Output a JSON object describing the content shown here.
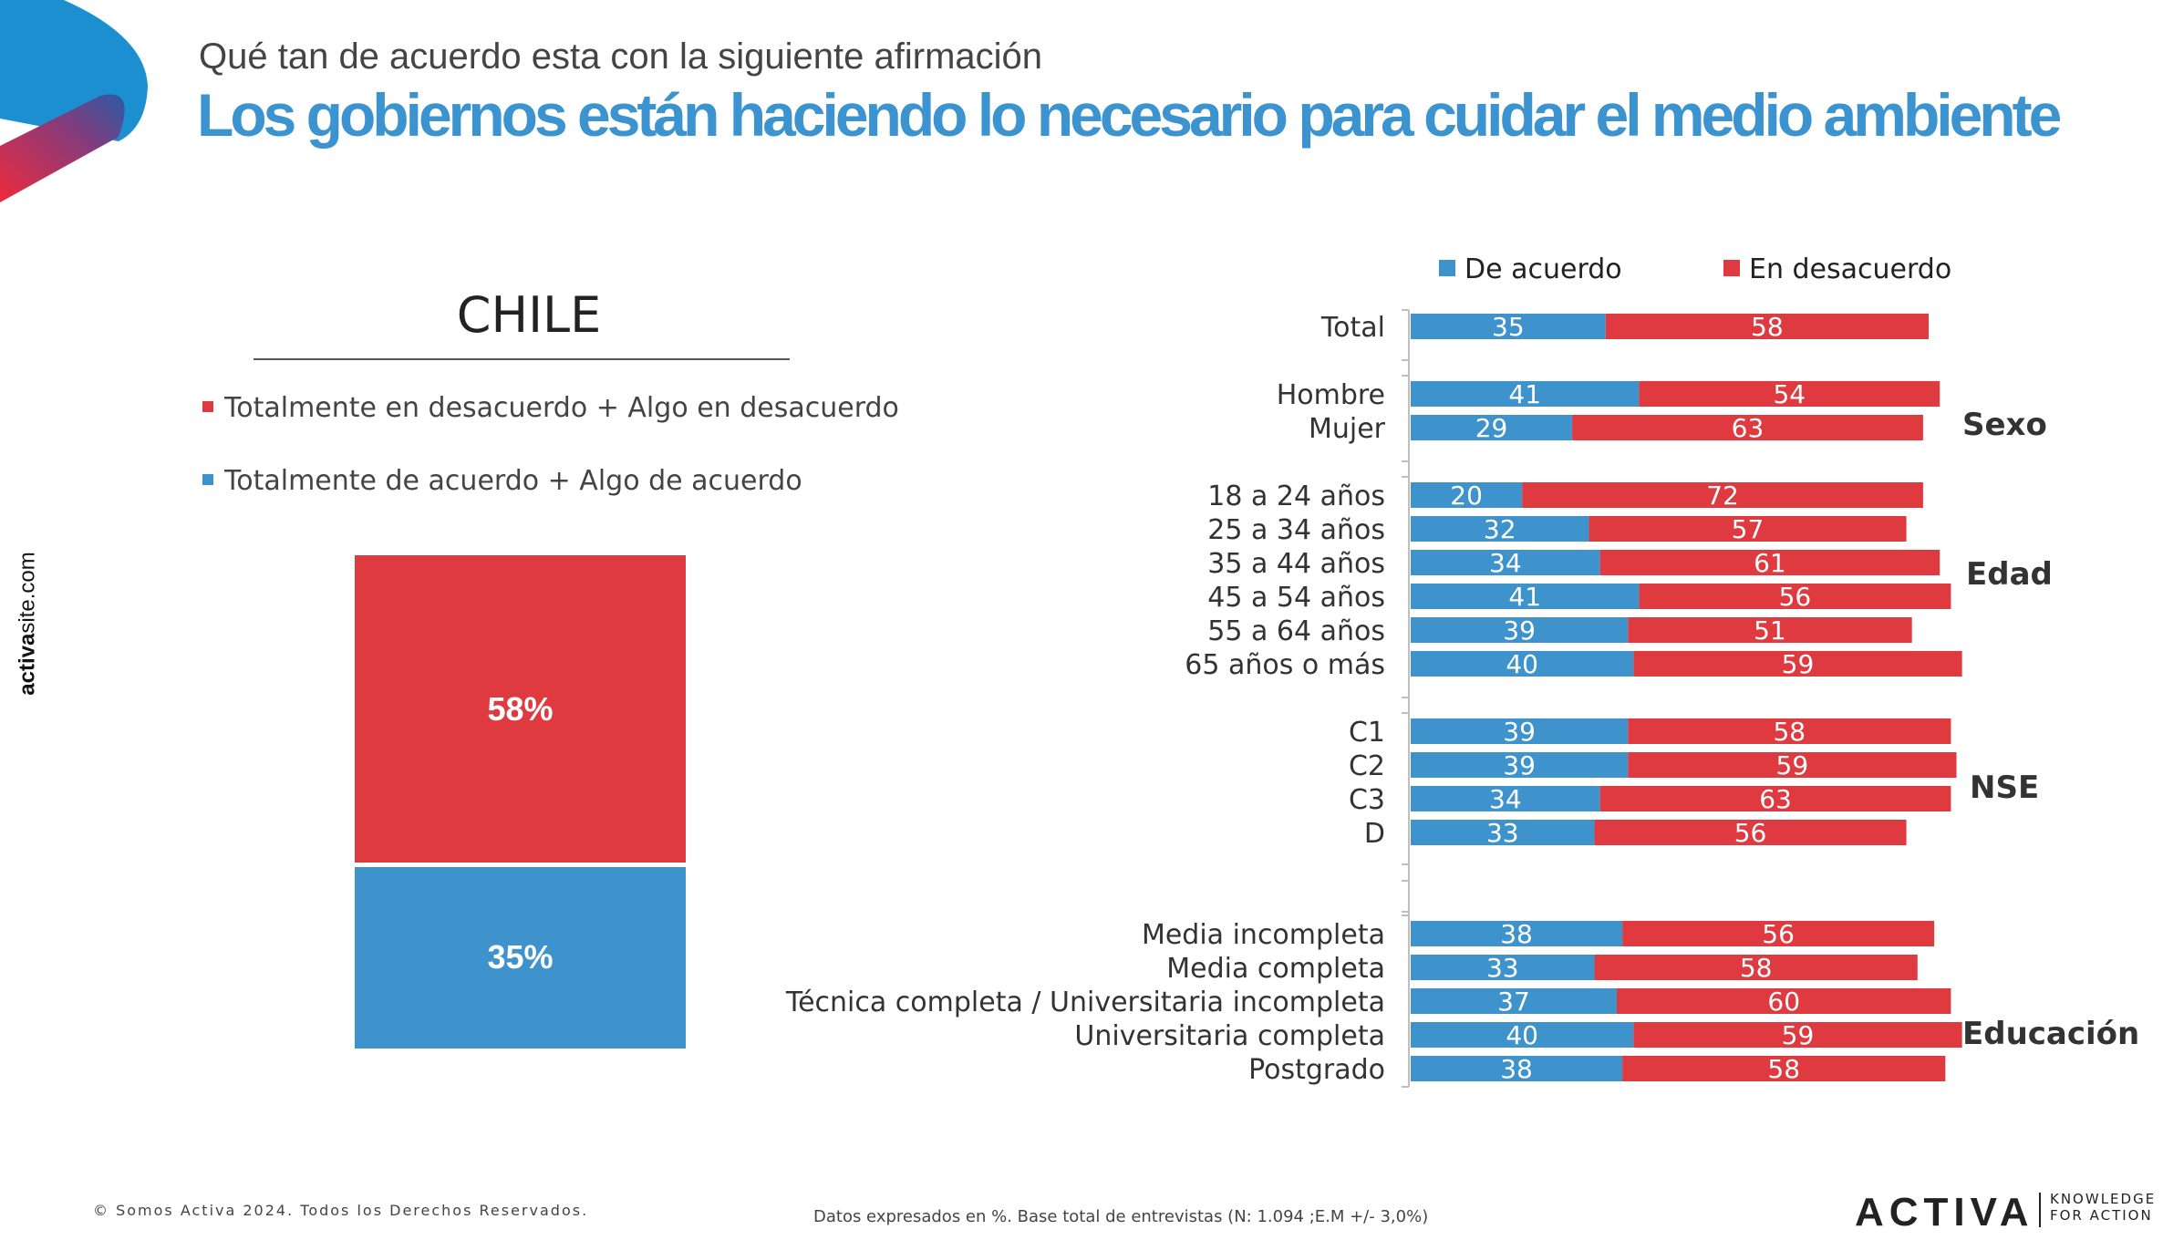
{
  "header": {
    "subtitle": "Qué tan de acuerdo esta con la siguiente afirmación",
    "title": "Los gobiernos están haciendo lo necesario para cuidar el medio ambiente"
  },
  "side_url": {
    "bold": "activa",
    "rest": "site.com"
  },
  "country": "CHILE",
  "left_legend": {
    "disagree": "Totalmente en desacuerdo + Algo en desacuerdo",
    "agree": "Totalmente de acuerdo + Algo de acuerdo"
  },
  "left_bar": {
    "disagree": "58%",
    "agree": "35%"
  },
  "top_legend": {
    "agree": "De acuerdo",
    "disagree": "En desacuerdo"
  },
  "colors": {
    "agree": "#3f93cc",
    "disagree": "#df3a3f",
    "title": "#3b93cf"
  },
  "chart_data": [
    {
      "type": "bar",
      "categories": [
        "CHILE"
      ],
      "series": [
        {
          "name": "Totalmente de acuerdo + Algo de acuerdo",
          "values": [
            35
          ]
        },
        {
          "name": "Totalmente en desacuerdo + Algo en desacuerdo",
          "values": [
            58
          ]
        }
      ]
    },
    {
      "type": "bar",
      "orientation": "horizontal-stacked",
      "categories": [
        "Total",
        "Hombre",
        "Mujer",
        "18 a 24 años",
        "25 a 34 años",
        "35 a 44 años",
        "45 a 54 años",
        "55 a 64 años",
        "65 años o más",
        "C1",
        "C2",
        "C3",
        "D",
        "Media incompleta",
        "Media completa",
        "Técnica completa / Universitaria incompleta",
        "Universitaria completa",
        "Postgrado"
      ],
      "series": [
        {
          "name": "De acuerdo",
          "values": [
            35,
            41,
            29,
            20,
            32,
            34,
            41,
            39,
            40,
            39,
            39,
            34,
            33,
            38,
            33,
            37,
            40,
            38
          ]
        },
        {
          "name": "En desacuerdo",
          "values": [
            58,
            54,
            63,
            72,
            57,
            61,
            56,
            51,
            59,
            58,
            59,
            63,
            56,
            56,
            58,
            60,
            59,
            58
          ]
        }
      ],
      "groups": [
        "Sexo",
        "Edad",
        "NSE",
        "Educación"
      ]
    }
  ],
  "footer": {
    "copyright": "© Somos Activa 2024. Todos los Derechos Reservados.",
    "note": "Datos expresados en %. Base total de entrevistas (N: 1.094  ;E.M +/- 3,0%)",
    "brand": "ACTIVA",
    "tagline_1": "KNOWLEDGE",
    "tagline_2": "FOR ACTION"
  }
}
